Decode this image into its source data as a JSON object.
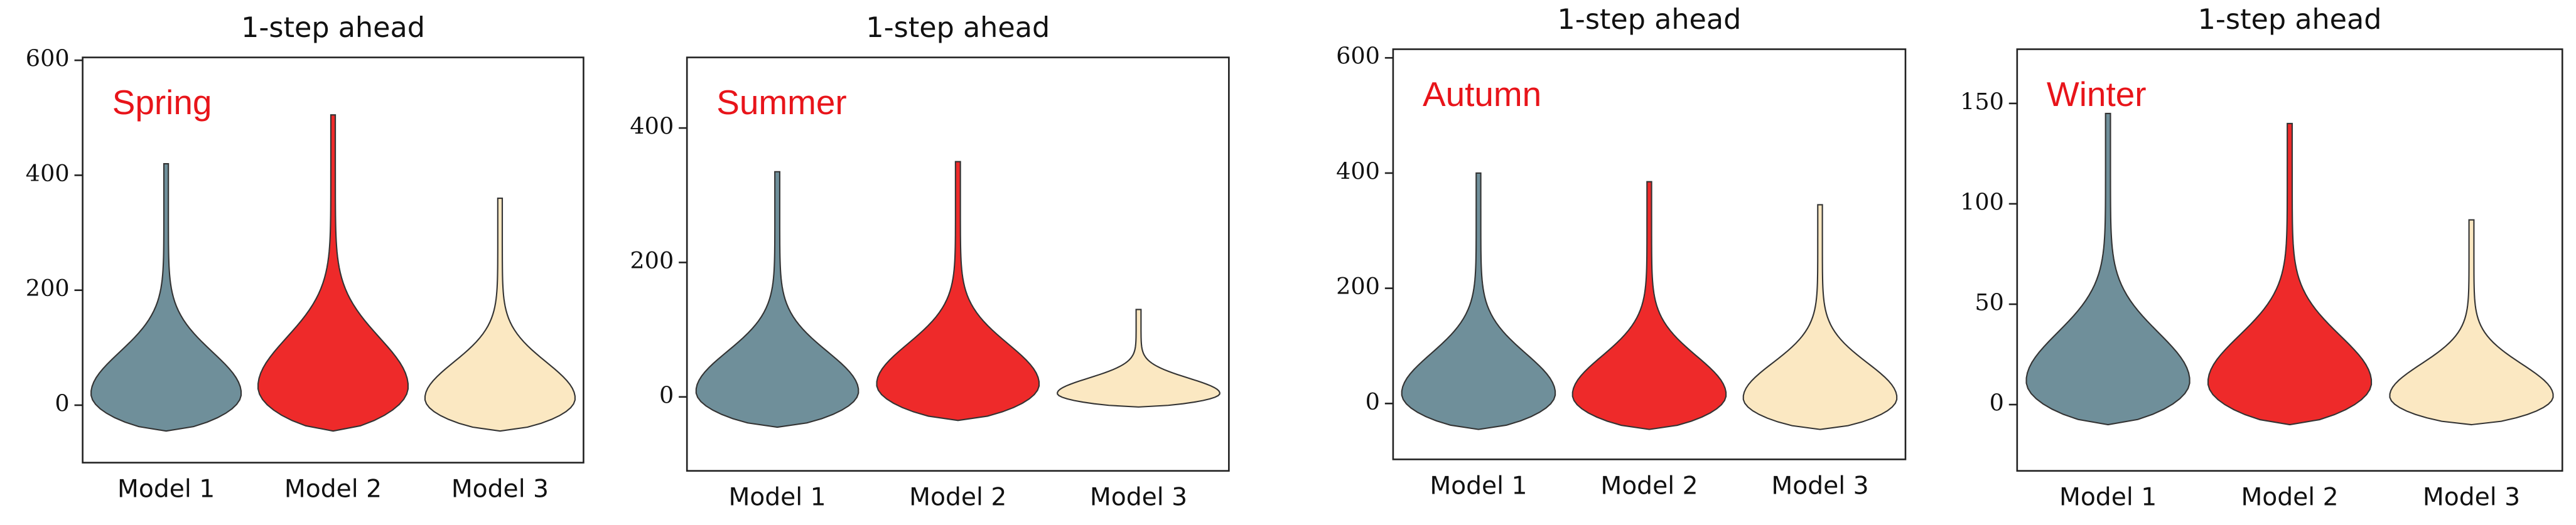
{
  "chart_data": [
    {
      "type": "violin",
      "title": "1-step ahead",
      "annotation": "Spring",
      "categories": [
        "Model 1",
        "Model 2",
        "Model 3"
      ],
      "min": [
        -45,
        -45,
        -45
      ],
      "max": [
        420,
        505,
        360
      ],
      "colors": [
        "#6f8f9a",
        "#ee2a2a",
        "#fbe8c2"
      ],
      "ylim": [
        -100,
        605
      ],
      "yticks": [
        0,
        200,
        400,
        600
      ]
    },
    {
      "type": "violin",
      "title": "1-step ahead",
      "annotation": "Summer",
      "categories": [
        "Model 1",
        "Model 2",
        "Model 3"
      ],
      "min": [
        -45,
        -35,
        -15
      ],
      "max": [
        335,
        350,
        130
      ],
      "colors": [
        "#6f8f9a",
        "#ee2a2a",
        "#fbe8c2"
      ],
      "ylim": [
        -110,
        505
      ],
      "yticks": [
        0,
        200,
        400
      ]
    },
    {
      "type": "violin",
      "title": "1-step ahead",
      "annotation": "Autumn",
      "categories": [
        "Model 1",
        "Model 2",
        "Model 3"
      ],
      "min": [
        -45,
        -45,
        -45
      ],
      "max": [
        400,
        385,
        345
      ],
      "colors": [
        "#6f8f9a",
        "#ee2a2a",
        "#fbe8c2"
      ],
      "ylim": [
        -97,
        615
      ],
      "yticks": [
        0,
        200,
        400,
        600
      ]
    },
    {
      "type": "violin",
      "title": "1-step ahead",
      "annotation": "Winter",
      "categories": [
        "Model 1",
        "Model 2",
        "Model 3"
      ],
      "min": [
        -10,
        -10,
        -10
      ],
      "max": [
        145,
        140,
        92
      ],
      "colors": [
        "#6f8f9a",
        "#ee2a2a",
        "#fbe8c2"
      ],
      "ylim": [
        -33,
        177
      ],
      "yticks": [
        0,
        50,
        100,
        150
      ]
    }
  ]
}
